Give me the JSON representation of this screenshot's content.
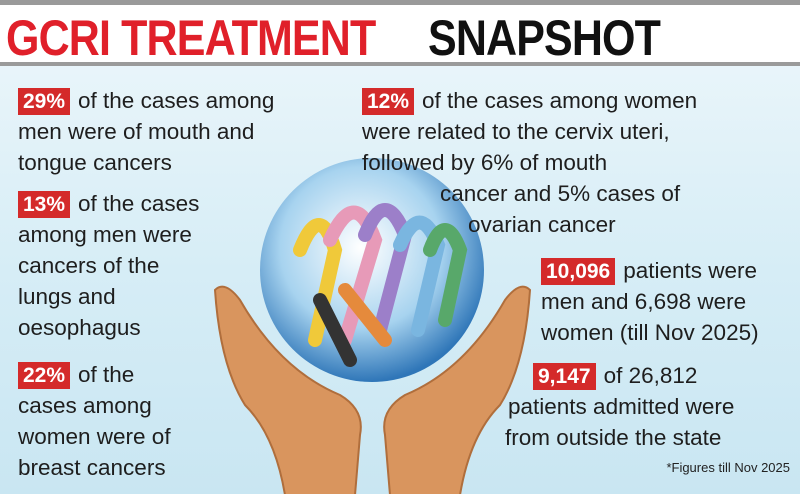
{
  "header": {
    "title_red": "GCRI TREATMENT",
    "title_black": "SNAPSHOT"
  },
  "facts": [
    {
      "highlight": "29%",
      "lines": [
        "of the cases among",
        "men were of mouth and",
        "tongue cancers"
      ]
    },
    {
      "highlight": "13%",
      "lines": [
        "of the cases",
        "among men were",
        "cancers of the",
        "lungs and",
        "oesophagus"
      ]
    },
    {
      "highlight": "22%",
      "lines": [
        "of  the",
        "cases among",
        "women were of",
        "breast cancers"
      ]
    },
    {
      "highlight": "12%",
      "lines": [
        "of the cases among women",
        "were related to the cervix uteri,",
        "followed by 6% of mouth",
        "cancer and 5% cases of",
        "ovarian cancer"
      ]
    },
    {
      "highlight": "10,096",
      "lines": [
        "patients were",
        "men and 6,698 were",
        "women (till Nov 2025)"
      ]
    },
    {
      "highlight": "9,147",
      "lines": [
        "of 26,812",
        "patients admitted were",
        "from outside the state"
      ]
    }
  ],
  "footnote": "*Figures till Nov 2025"
}
